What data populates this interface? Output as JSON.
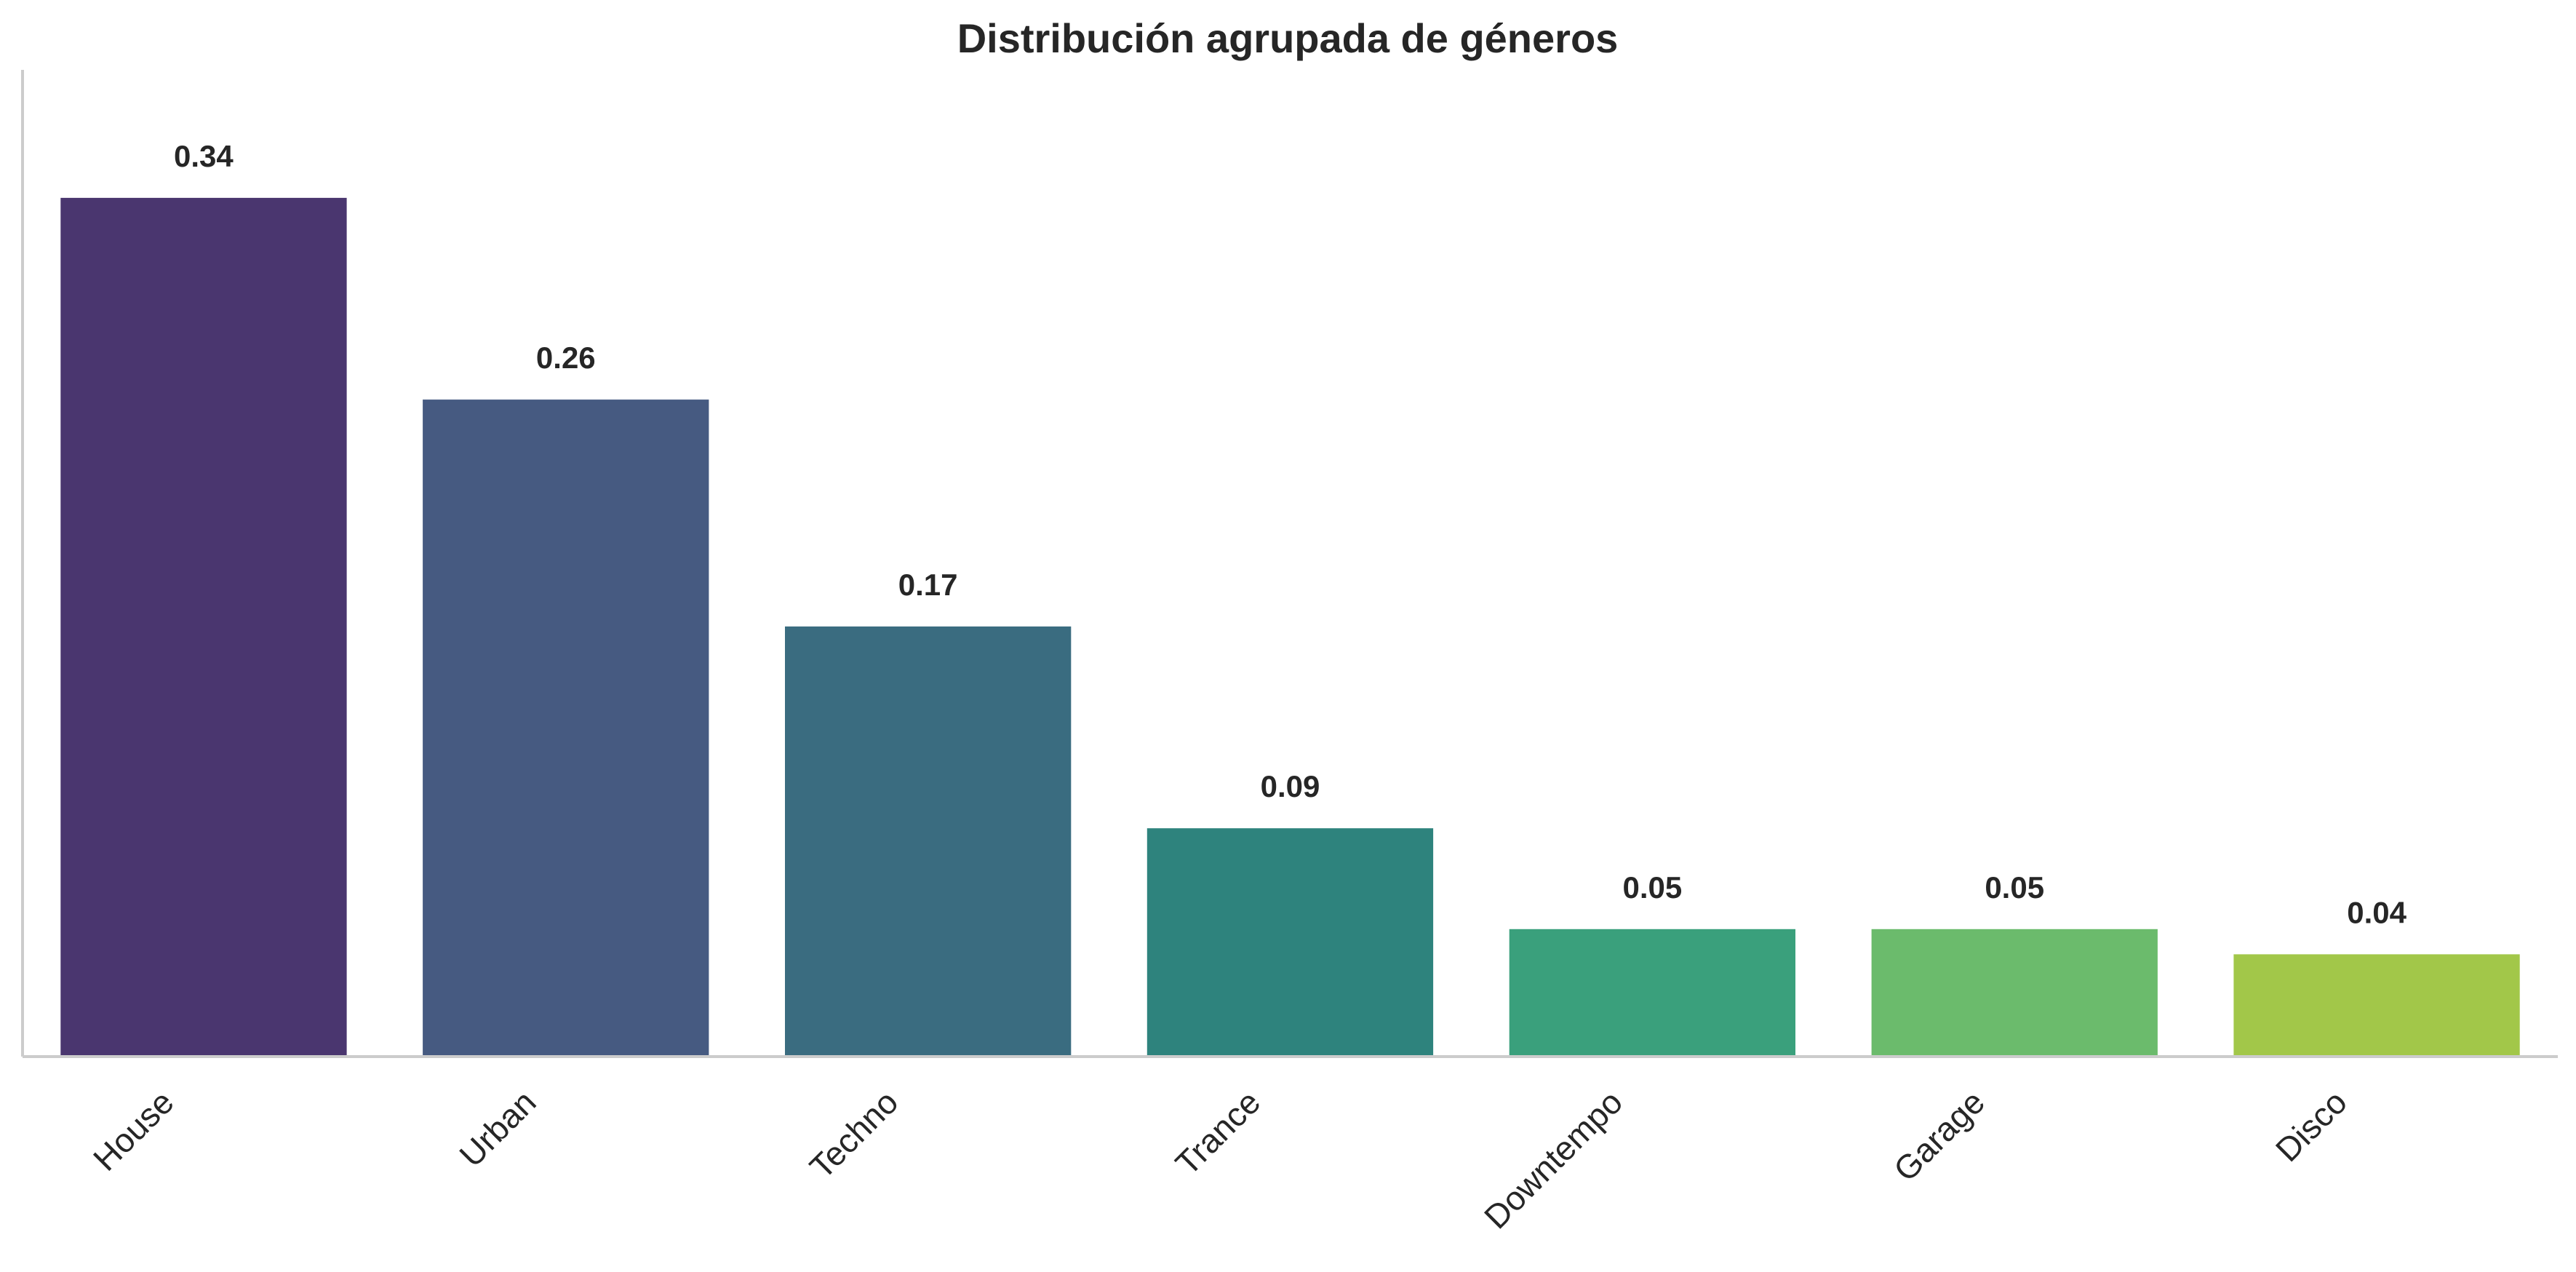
{
  "chart_data": {
    "type": "bar",
    "title": "Distribución agrupada de géneros",
    "xlabel": "",
    "ylabel": "",
    "categories": [
      "House",
      "Urban",
      "Techno",
      "Trance",
      "Downtempo",
      "Garage",
      "Disco"
    ],
    "values": [
      0.34,
      0.26,
      0.17,
      0.09,
      0.05,
      0.05,
      0.04
    ],
    "value_labels": [
      "0.34",
      "0.26",
      "0.17",
      "0.09",
      "0.05",
      "0.05",
      "0.04"
    ],
    "colors": [
      "#4a366f",
      "#465a81",
      "#3a6c80",
      "#2e837d",
      "#3aa07c",
      "#6bbb6c",
      "#a2c749"
    ],
    "ylim": [
      0,
      0.39
    ],
    "grid": false,
    "legend": "none"
  }
}
